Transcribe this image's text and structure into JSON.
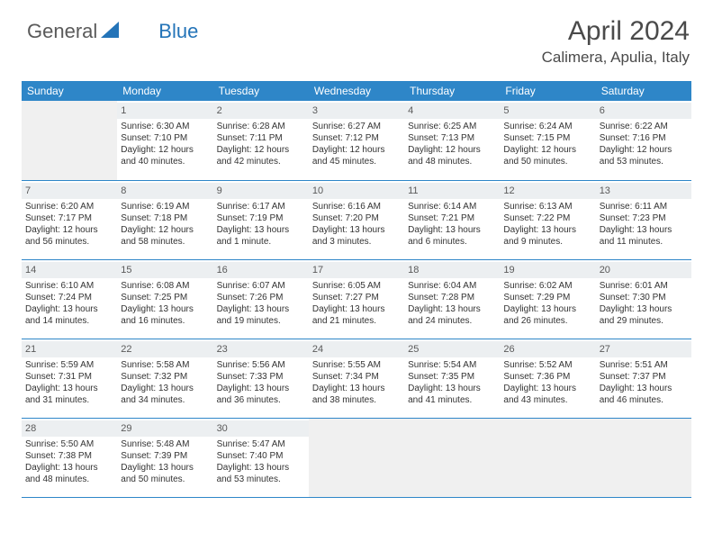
{
  "brand": {
    "part1": "General",
    "part2": "Blue"
  },
  "title": "April 2024",
  "location": "Calimera, Apulia, Italy",
  "weekdays": [
    "Sunday",
    "Monday",
    "Tuesday",
    "Wednesday",
    "Thursday",
    "Friday",
    "Saturday"
  ],
  "colors": {
    "header_bg": "#2e86c8",
    "header_text": "#ffffff",
    "daynum_bg": "#eceff1",
    "empty_bg": "#f0f0f0",
    "rule": "#2e86c8"
  },
  "typography": {
    "title_fontsize": 30,
    "location_fontsize": 17,
    "weekday_fontsize": 12,
    "cell_fontsize": 10
  },
  "layout": {
    "columns": 7,
    "rows": 5,
    "leading_empty": 1
  },
  "days": [
    {
      "n": "1",
      "sunrise": "Sunrise: 6:30 AM",
      "sunset": "Sunset: 7:10 PM",
      "dl1": "Daylight: 12 hours",
      "dl2": "and 40 minutes."
    },
    {
      "n": "2",
      "sunrise": "Sunrise: 6:28 AM",
      "sunset": "Sunset: 7:11 PM",
      "dl1": "Daylight: 12 hours",
      "dl2": "and 42 minutes."
    },
    {
      "n": "3",
      "sunrise": "Sunrise: 6:27 AM",
      "sunset": "Sunset: 7:12 PM",
      "dl1": "Daylight: 12 hours",
      "dl2": "and 45 minutes."
    },
    {
      "n": "4",
      "sunrise": "Sunrise: 6:25 AM",
      "sunset": "Sunset: 7:13 PM",
      "dl1": "Daylight: 12 hours",
      "dl2": "and 48 minutes."
    },
    {
      "n": "5",
      "sunrise": "Sunrise: 6:24 AM",
      "sunset": "Sunset: 7:15 PM",
      "dl1": "Daylight: 12 hours",
      "dl2": "and 50 minutes."
    },
    {
      "n": "6",
      "sunrise": "Sunrise: 6:22 AM",
      "sunset": "Sunset: 7:16 PM",
      "dl1": "Daylight: 12 hours",
      "dl2": "and 53 minutes."
    },
    {
      "n": "7",
      "sunrise": "Sunrise: 6:20 AM",
      "sunset": "Sunset: 7:17 PM",
      "dl1": "Daylight: 12 hours",
      "dl2": "and 56 minutes."
    },
    {
      "n": "8",
      "sunrise": "Sunrise: 6:19 AM",
      "sunset": "Sunset: 7:18 PM",
      "dl1": "Daylight: 12 hours",
      "dl2": "and 58 minutes."
    },
    {
      "n": "9",
      "sunrise": "Sunrise: 6:17 AM",
      "sunset": "Sunset: 7:19 PM",
      "dl1": "Daylight: 13 hours",
      "dl2": "and 1 minute."
    },
    {
      "n": "10",
      "sunrise": "Sunrise: 6:16 AM",
      "sunset": "Sunset: 7:20 PM",
      "dl1": "Daylight: 13 hours",
      "dl2": "and 3 minutes."
    },
    {
      "n": "11",
      "sunrise": "Sunrise: 6:14 AM",
      "sunset": "Sunset: 7:21 PM",
      "dl1": "Daylight: 13 hours",
      "dl2": "and 6 minutes."
    },
    {
      "n": "12",
      "sunrise": "Sunrise: 6:13 AM",
      "sunset": "Sunset: 7:22 PM",
      "dl1": "Daylight: 13 hours",
      "dl2": "and 9 minutes."
    },
    {
      "n": "13",
      "sunrise": "Sunrise: 6:11 AM",
      "sunset": "Sunset: 7:23 PM",
      "dl1": "Daylight: 13 hours",
      "dl2": "and 11 minutes."
    },
    {
      "n": "14",
      "sunrise": "Sunrise: 6:10 AM",
      "sunset": "Sunset: 7:24 PM",
      "dl1": "Daylight: 13 hours",
      "dl2": "and 14 minutes."
    },
    {
      "n": "15",
      "sunrise": "Sunrise: 6:08 AM",
      "sunset": "Sunset: 7:25 PM",
      "dl1": "Daylight: 13 hours",
      "dl2": "and 16 minutes."
    },
    {
      "n": "16",
      "sunrise": "Sunrise: 6:07 AM",
      "sunset": "Sunset: 7:26 PM",
      "dl1": "Daylight: 13 hours",
      "dl2": "and 19 minutes."
    },
    {
      "n": "17",
      "sunrise": "Sunrise: 6:05 AM",
      "sunset": "Sunset: 7:27 PM",
      "dl1": "Daylight: 13 hours",
      "dl2": "and 21 minutes."
    },
    {
      "n": "18",
      "sunrise": "Sunrise: 6:04 AM",
      "sunset": "Sunset: 7:28 PM",
      "dl1": "Daylight: 13 hours",
      "dl2": "and 24 minutes."
    },
    {
      "n": "19",
      "sunrise": "Sunrise: 6:02 AM",
      "sunset": "Sunset: 7:29 PM",
      "dl1": "Daylight: 13 hours",
      "dl2": "and 26 minutes."
    },
    {
      "n": "20",
      "sunrise": "Sunrise: 6:01 AM",
      "sunset": "Sunset: 7:30 PM",
      "dl1": "Daylight: 13 hours",
      "dl2": "and 29 minutes."
    },
    {
      "n": "21",
      "sunrise": "Sunrise: 5:59 AM",
      "sunset": "Sunset: 7:31 PM",
      "dl1": "Daylight: 13 hours",
      "dl2": "and 31 minutes."
    },
    {
      "n": "22",
      "sunrise": "Sunrise: 5:58 AM",
      "sunset": "Sunset: 7:32 PM",
      "dl1": "Daylight: 13 hours",
      "dl2": "and 34 minutes."
    },
    {
      "n": "23",
      "sunrise": "Sunrise: 5:56 AM",
      "sunset": "Sunset: 7:33 PM",
      "dl1": "Daylight: 13 hours",
      "dl2": "and 36 minutes."
    },
    {
      "n": "24",
      "sunrise": "Sunrise: 5:55 AM",
      "sunset": "Sunset: 7:34 PM",
      "dl1": "Daylight: 13 hours",
      "dl2": "and 38 minutes."
    },
    {
      "n": "25",
      "sunrise": "Sunrise: 5:54 AM",
      "sunset": "Sunset: 7:35 PM",
      "dl1": "Daylight: 13 hours",
      "dl2": "and 41 minutes."
    },
    {
      "n": "26",
      "sunrise": "Sunrise: 5:52 AM",
      "sunset": "Sunset: 7:36 PM",
      "dl1": "Daylight: 13 hours",
      "dl2": "and 43 minutes."
    },
    {
      "n": "27",
      "sunrise": "Sunrise: 5:51 AM",
      "sunset": "Sunset: 7:37 PM",
      "dl1": "Daylight: 13 hours",
      "dl2": "and 46 minutes."
    },
    {
      "n": "28",
      "sunrise": "Sunrise: 5:50 AM",
      "sunset": "Sunset: 7:38 PM",
      "dl1": "Daylight: 13 hours",
      "dl2": "and 48 minutes."
    },
    {
      "n": "29",
      "sunrise": "Sunrise: 5:48 AM",
      "sunset": "Sunset: 7:39 PM",
      "dl1": "Daylight: 13 hours",
      "dl2": "and 50 minutes."
    },
    {
      "n": "30",
      "sunrise": "Sunrise: 5:47 AM",
      "sunset": "Sunset: 7:40 PM",
      "dl1": "Daylight: 13 hours",
      "dl2": "and 53 minutes."
    }
  ]
}
